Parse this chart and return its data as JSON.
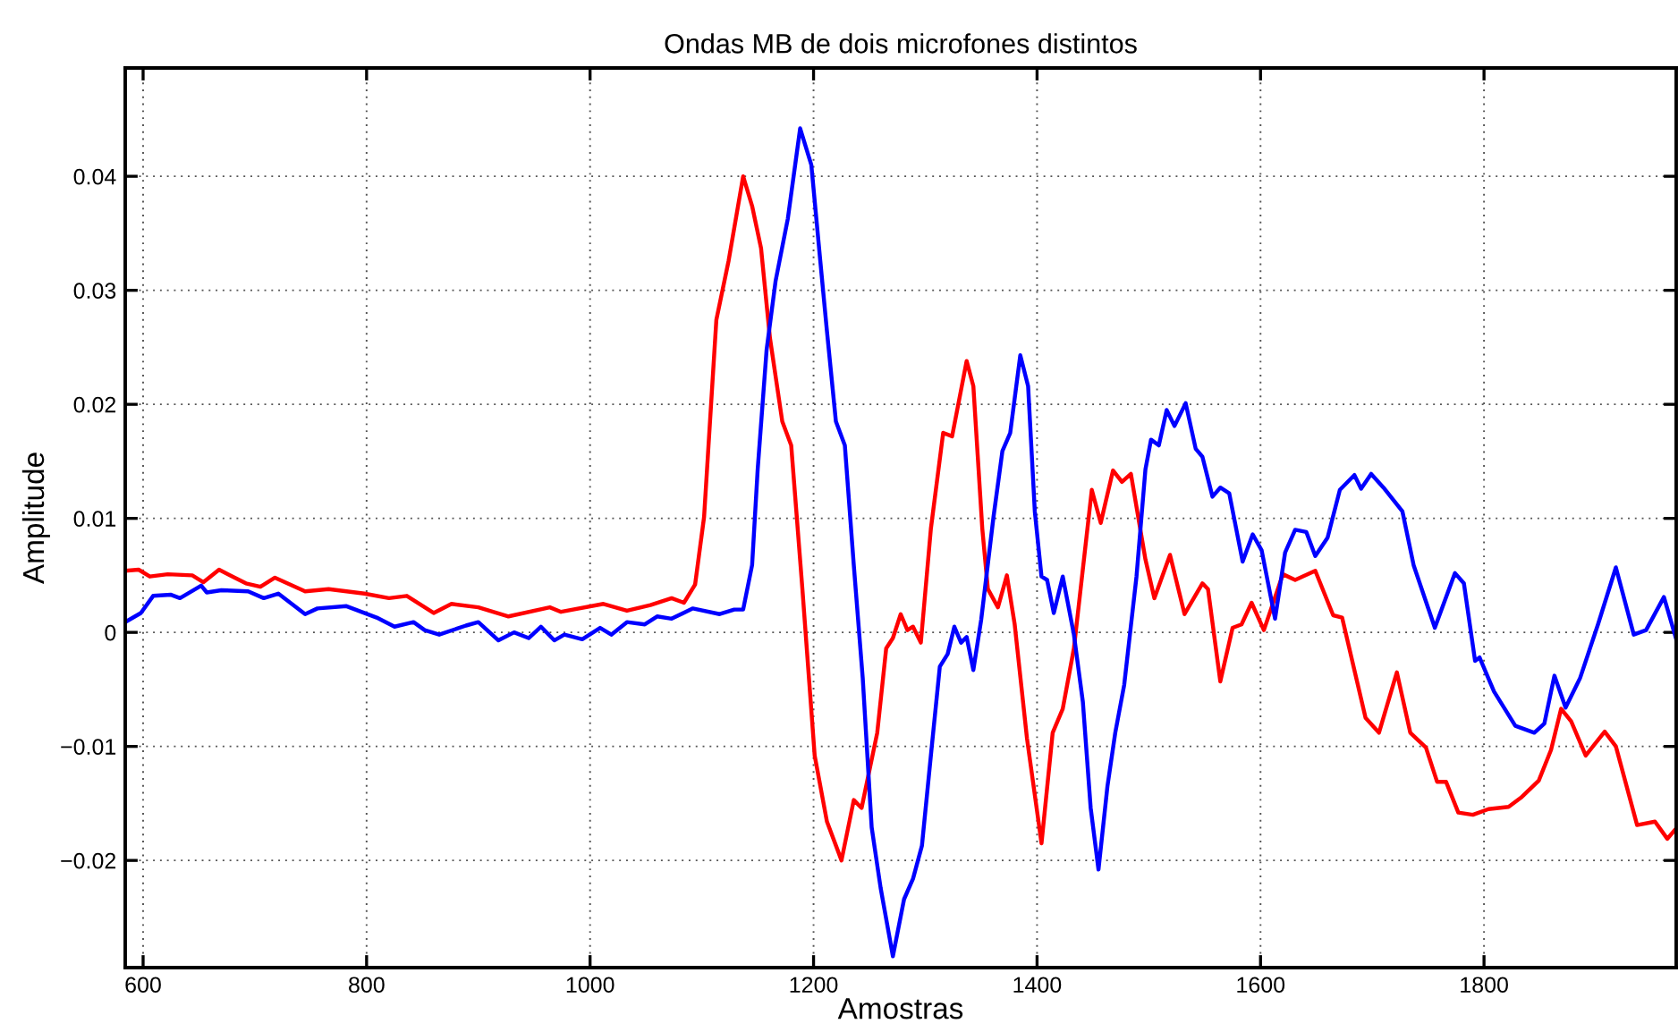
{
  "chart_data": {
    "type": "line",
    "title": "Ondas MB de dois microfones distintos",
    "xlabel": "Amostras",
    "ylabel": "Amplitude",
    "xlim": [
      584,
      1972
    ],
    "ylim": [
      -0.0294,
      0.0495
    ],
    "xticks": [
      600,
      800,
      1000,
      1200,
      1400,
      1600,
      1800
    ],
    "yticks": [
      {
        "value": -0.02,
        "label": "−0.02"
      },
      {
        "value": -0.01,
        "label": "−0.01"
      },
      0,
      0.01,
      0.02,
      0.03,
      0.04
    ],
    "grid": true,
    "line_style": "solid",
    "marker": "none",
    "series": [
      {
        "color": "#ff0000",
        "x": [
          584,
          596,
          606,
          622,
          644,
          654,
          668,
          692,
          705,
          718,
          745,
          766,
          798,
          820,
          836,
          860,
          876,
          900,
          927,
          964,
          974,
          1012,
          1033,
          1054,
          1073,
          1084,
          1094,
          1102,
          1113,
          1124,
          1137,
          1145,
          1153,
          1161,
          1172,
          1180,
          1190,
          1201,
          1212,
          1225,
          1236,
          1243,
          1257,
          1265,
          1271,
          1278,
          1284,
          1289,
          1296,
          1305,
          1316,
          1324,
          1337,
          1343,
          1351,
          1356,
          1365,
          1373,
          1380,
          1391,
          1404,
          1414,
          1423,
          1433,
          1449,
          1457,
          1468,
          1476,
          1484,
          1497,
          1505,
          1519,
          1532,
          1548,
          1553,
          1564,
          1575,
          1583,
          1592,
          1603,
          1620,
          1631,
          1649,
          1665,
          1673,
          1694,
          1706,
          1722,
          1734,
          1748,
          1758,
          1766,
          1777,
          1790,
          1804,
          1822,
          1833,
          1849,
          1860,
          1869,
          1878,
          1891,
          1908,
          1918,
          1937,
          1953,
          1964,
          1972
        ],
        "values": [
          0.0054,
          0.0055,
          0.0049,
          0.0051,
          0.005,
          0.0044,
          0.0055,
          0.0043,
          0.004,
          0.0048,
          0.0036,
          0.0038,
          0.0034,
          0.003,
          0.0032,
          0.0017,
          0.0025,
          0.0022,
          0.0014,
          0.0022,
          0.0018,
          0.0025,
          0.0019,
          0.0024,
          0.003,
          0.0026,
          0.0042,
          0.0101,
          0.0274,
          0.0326,
          0.04,
          0.0374,
          0.0337,
          0.0258,
          0.0185,
          0.0164,
          0.0038,
          -0.0108,
          -0.0166,
          -0.02,
          -0.0147,
          -0.0154,
          -0.0088,
          -0.0014,
          -0.0005,
          0.0016,
          0.0002,
          0.0005,
          -0.0009,
          0.0091,
          0.0175,
          0.0172,
          0.0238,
          0.0216,
          0.0091,
          0.0038,
          0.0022,
          0.005,
          0.0007,
          -0.0093,
          -0.0185,
          -0.0088,
          -0.0067,
          -0.0014,
          0.0125,
          0.0096,
          0.0142,
          0.0132,
          0.0139,
          0.0064,
          0.003,
          0.0068,
          0.0016,
          0.0043,
          0.0038,
          -0.0043,
          0.0004,
          0.0007,
          0.0026,
          0.0002,
          0.0051,
          0.0046,
          0.0054,
          0.0015,
          0.0013,
          -0.0075,
          -0.0088,
          -0.0035,
          -0.0088,
          -0.0101,
          -0.0131,
          -0.0131,
          -0.0158,
          -0.016,
          -0.0155,
          -0.0153,
          -0.0145,
          -0.013,
          -0.0103,
          -0.0067,
          -0.0078,
          -0.0108,
          -0.0087,
          -0.01,
          -0.0169,
          -0.0166,
          -0.0181,
          -0.0172
        ]
      },
      {
        "color": "#0000ff",
        "x": [
          584,
          598,
          609,
          625,
          633,
          652,
          657,
          670,
          694,
          708,
          721,
          745,
          756,
          782,
          809,
          825,
          842,
          852,
          865,
          889,
          900,
          918,
          932,
          945,
          956,
          968,
          977,
          993,
          1009,
          1019,
          1033,
          1049,
          1060,
          1073,
          1092,
          1116,
          1129,
          1137,
          1145,
          1150,
          1158,
          1166,
          1177,
          1188,
          1198,
          1206,
          1212,
          1220,
          1228,
          1236,
          1244,
          1252,
          1260,
          1271,
          1281,
          1289,
          1297,
          1305,
          1313,
          1320,
          1326,
          1332,
          1337,
          1343,
          1350,
          1361,
          1369,
          1376,
          1385,
          1392,
          1398,
          1404,
          1409,
          1415,
          1423,
          1433,
          1441,
          1448,
          1455,
          1463,
          1470,
          1478,
          1489,
          1497,
          1502,
          1509,
          1516,
          1523,
          1533,
          1542,
          1548,
          1557,
          1564,
          1572,
          1584,
          1593,
          1601,
          1613,
          1622,
          1631,
          1641,
          1649,
          1660,
          1671,
          1684,
          1690,
          1699,
          1710,
          1727,
          1737,
          1756,
          1774,
          1782,
          1792,
          1796,
          1809,
          1828,
          1845,
          1854,
          1863,
          1873,
          1886,
          1902,
          1918,
          1934,
          1945,
          1961,
          1972
        ],
        "values": [
          0.0009,
          0.0017,
          0.0032,
          0.0033,
          0.003,
          0.0041,
          0.0035,
          0.0037,
          0.0036,
          0.003,
          0.0034,
          0.0016,
          0.0021,
          0.0023,
          0.0013,
          0.0005,
          0.0009,
          0.0002,
          -0.0002,
          0.0006,
          0.0009,
          -0.0007,
          0.0,
          -0.0005,
          0.0005,
          -0.0007,
          -0.0002,
          -0.0006,
          0.0004,
          -0.0002,
          0.0009,
          0.0007,
          0.0014,
          0.0012,
          0.0021,
          0.0016,
          0.002,
          0.002,
          0.0059,
          0.0143,
          0.0248,
          0.0308,
          0.0363,
          0.0442,
          0.041,
          0.0326,
          0.0264,
          0.0185,
          0.0164,
          0.0059,
          -0.004,
          -0.0171,
          -0.0224,
          -0.0284,
          -0.0234,
          -0.0216,
          -0.0187,
          -0.0108,
          -0.003,
          -0.0019,
          0.0005,
          -0.0009,
          -0.0004,
          -0.0033,
          0.0011,
          0.0101,
          0.0159,
          0.0175,
          0.0243,
          0.0216,
          0.0106,
          0.0049,
          0.0046,
          0.0017,
          0.0049,
          -0.0002,
          -0.0061,
          -0.0154,
          -0.0208,
          -0.0135,
          -0.0088,
          -0.0046,
          0.0049,
          0.0143,
          0.0169,
          0.0164,
          0.0195,
          0.0181,
          0.0201,
          0.0161,
          0.0154,
          0.0119,
          0.0127,
          0.0122,
          0.0062,
          0.0086,
          0.0072,
          0.0012,
          0.007,
          0.009,
          0.0088,
          0.0067,
          0.0083,
          0.0125,
          0.0138,
          0.0126,
          0.0139,
          0.0127,
          0.0106,
          0.0059,
          0.0004,
          0.0052,
          0.0043,
          -0.0025,
          -0.0022,
          -0.0052,
          -0.0082,
          -0.0088,
          -0.008,
          -0.0038,
          -0.0066,
          -0.004,
          0.0007,
          0.0057,
          -0.0002,
          0.0002,
          0.0031,
          -0.0006
        ]
      }
    ]
  }
}
